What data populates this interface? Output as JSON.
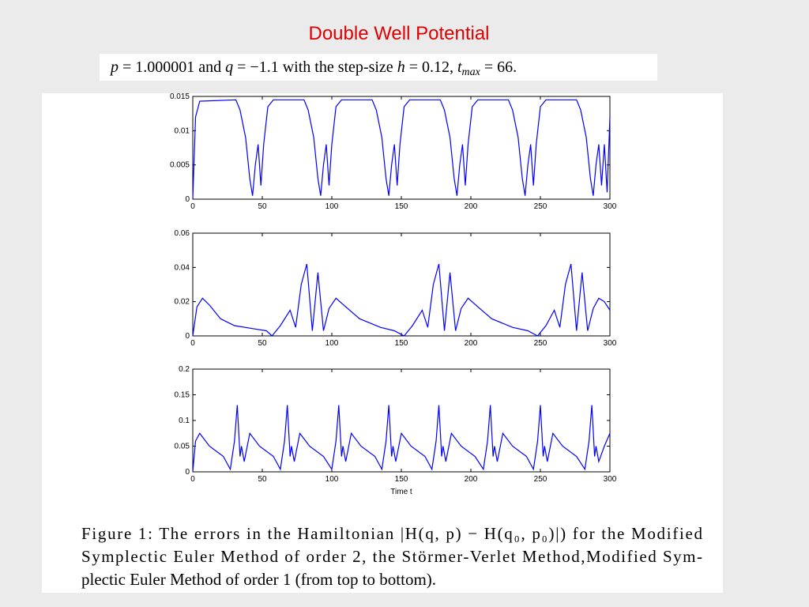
{
  "title": "Double Well Potential",
  "subtitle": [
    "p",
    " = 1.000001 and ",
    "q",
    " = −1.1 with the step-size ",
    "h",
    " = 0.12, ",
    "t",
    "max",
    " = 66."
  ],
  "caption": [
    "Figure 1: The errors in the Hamiltonian |H(q, p) − H(q₀, p₀)|) for the Modified",
    "Symplectic Euler Method of order 2, the Störmer-Verlet Method,Modified Sym-",
    "plectic Euler Method of order 1 (from top to bottom)."
  ],
  "chart_data": [
    {
      "type": "line",
      "x": [
        0,
        2,
        5,
        31,
        34,
        38,
        41,
        43,
        45,
        47,
        49,
        51,
        54,
        58,
        80,
        83,
        87,
        90,
        92,
        94,
        96,
        98,
        100,
        103,
        107,
        129,
        132,
        136,
        139,
        141,
        143,
        145,
        147,
        149,
        152,
        156,
        178,
        181,
        185,
        188,
        190,
        192,
        194,
        196,
        198,
        201,
        205,
        227,
        230,
        234,
        237,
        239,
        241,
        243,
        245,
        247,
        250,
        254,
        276,
        279,
        283,
        286,
        288,
        290,
        292,
        294,
        296,
        298,
        300
      ],
      "series": [
        {
          "color": "#0000ff",
          "values": [
            0,
            0.012,
            0.0143,
            0.0145,
            0.013,
            0.009,
            0.003,
            0.0005,
            0.005,
            0.008,
            0.002,
            0.008,
            0.0135,
            0.0145,
            0.0145,
            0.013,
            0.009,
            0.003,
            0.0005,
            0.005,
            0.008,
            0.002,
            0.008,
            0.0135,
            0.0145,
            0.0145,
            0.013,
            0.009,
            0.003,
            0.0005,
            0.005,
            0.008,
            0.002,
            0.008,
            0.0135,
            0.0145,
            0.0145,
            0.013,
            0.009,
            0.003,
            0.0005,
            0.005,
            0.008,
            0.002,
            0.008,
            0.0135,
            0.0145,
            0.0145,
            0.013,
            0.009,
            0.003,
            0.0005,
            0.005,
            0.008,
            0.002,
            0.008,
            0.0135,
            0.0145,
            0.0145,
            0.013,
            0.009,
            0.003,
            0.0005,
            0.005,
            0.008,
            0.002,
            0.008,
            0.001,
            0.012
          ]
        }
      ],
      "xlim": [
        0,
        300
      ],
      "xticks": [
        0,
        50,
        100,
        150,
        200,
        250,
        300
      ],
      "ylim": [
        0,
        0.015
      ],
      "yticks": [
        0,
        0.005,
        0.01,
        0.015
      ]
    },
    {
      "type": "line",
      "x": [
        0,
        3,
        7,
        12,
        20,
        30,
        45,
        53,
        57,
        63,
        70,
        74,
        78,
        82,
        86,
        90,
        94,
        98,
        103,
        110,
        120,
        135,
        145,
        152,
        158,
        165,
        169,
        173,
        177,
        181,
        185,
        189,
        193,
        198,
        205,
        215,
        230,
        241,
        248,
        254,
        260,
        264,
        268,
        272,
        276,
        280,
        284,
        288,
        292,
        296,
        300
      ],
      "series": [
        {
          "color": "#0000ff",
          "values": [
            0,
            0.017,
            0.022,
            0.018,
            0.01,
            0.006,
            0.004,
            0.003,
            0,
            0.006,
            0.015,
            0.005,
            0.03,
            0.042,
            0.003,
            0.037,
            0.003,
            0.016,
            0.022,
            0.017,
            0.01,
            0.005,
            0.003,
            0,
            0.006,
            0.015,
            0.005,
            0.03,
            0.042,
            0.003,
            0.037,
            0.003,
            0.016,
            0.022,
            0.017,
            0.01,
            0.005,
            0.003,
            0,
            0.006,
            0.015,
            0.005,
            0.03,
            0.042,
            0.003,
            0.037,
            0.003,
            0.016,
            0.022,
            0.02,
            0.015
          ]
        }
      ],
      "xlim": [
        0,
        300
      ],
      "xticks": [
        0,
        50,
        100,
        150,
        200,
        250,
        300
      ],
      "ylim": [
        0,
        0.06
      ],
      "yticks": [
        0,
        0.02,
        0.04,
        0.06
      ]
    },
    {
      "type": "line",
      "x_label": "Time t",
      "x": [
        0,
        2,
        5,
        12,
        22,
        27,
        30,
        32,
        34,
        35,
        37,
        41,
        48,
        58,
        63,
        66,
        68,
        70,
        71,
        73,
        77,
        84,
        94,
        100,
        103,
        105,
        107,
        108,
        110,
        114,
        121,
        131,
        136,
        139,
        141,
        143,
        144,
        146,
        150,
        157,
        167,
        172,
        175,
        177,
        179,
        180,
        182,
        186,
        193,
        203,
        209,
        212,
        214,
        216,
        217,
        219,
        223,
        230,
        240,
        245,
        248,
        250,
        252,
        253,
        255,
        259,
        266,
        276,
        282,
        285,
        287,
        289,
        290,
        292,
        296,
        300
      ],
      "series": [
        {
          "color": "#0000ff",
          "values": [
            0,
            0.06,
            0.075,
            0.05,
            0.03,
            0.005,
            0.06,
            0.13,
            0.03,
            0.05,
            0.02,
            0.075,
            0.05,
            0.03,
            0.005,
            0.06,
            0.13,
            0.03,
            0.05,
            0.02,
            0.075,
            0.05,
            0.03,
            0.005,
            0.06,
            0.13,
            0.03,
            0.05,
            0.02,
            0.075,
            0.05,
            0.03,
            0.005,
            0.06,
            0.13,
            0.03,
            0.05,
            0.02,
            0.075,
            0.05,
            0.03,
            0.005,
            0.06,
            0.13,
            0.03,
            0.05,
            0.02,
            0.075,
            0.05,
            0.03,
            0.005,
            0.06,
            0.13,
            0.03,
            0.05,
            0.02,
            0.075,
            0.05,
            0.03,
            0.005,
            0.06,
            0.13,
            0.03,
            0.05,
            0.02,
            0.075,
            0.05,
            0.03,
            0.005,
            0.06,
            0.13,
            0.03,
            0.05,
            0.02,
            0.05,
            0.075
          ]
        }
      ],
      "xlim": [
        0,
        300
      ],
      "xticks": [
        0,
        50,
        100,
        150,
        200,
        250,
        300
      ],
      "ylim": [
        0,
        0.2
      ],
      "yticks": [
        0,
        0.05,
        0.1,
        0.15,
        0.2
      ]
    }
  ]
}
